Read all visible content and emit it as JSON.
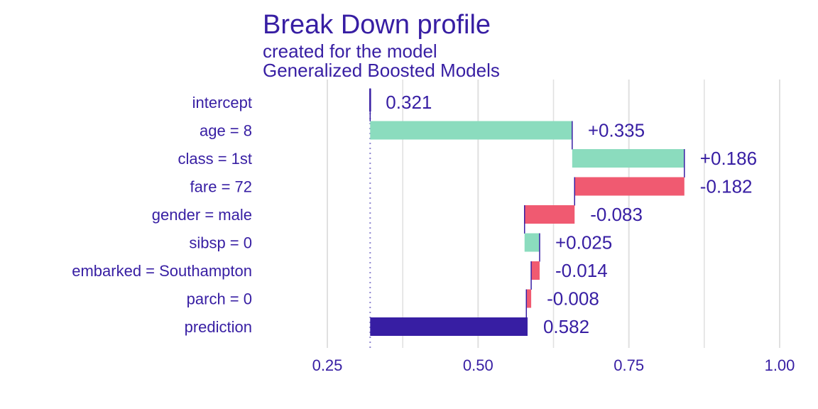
{
  "chart_data": {
    "type": "bar",
    "title": "Break Down profile",
    "subtitle_lines": [
      "created for the  model",
      "Generalized Boosted Models"
    ],
    "xlabel": "",
    "ylabel": "",
    "xlim": [
      0.18,
      1.0
    ],
    "x_ticks": [
      0.25,
      0.5,
      0.75,
      1.0
    ],
    "x_tick_labels": [
      "0.25",
      "0.50",
      "0.75",
      "1.00"
    ],
    "grid": true,
    "baseline": 0.321,
    "categories": [
      "intercept",
      "age = 8",
      "class = 1st",
      "fare = 72",
      "gender = male",
      "sibsp = 0",
      "embarked = Southampton",
      "parch = 0",
      "prediction"
    ],
    "bars": [
      {
        "label": "intercept",
        "start": 0.321,
        "end": 0.321,
        "kind": "intercept",
        "value_label": "0.321"
      },
      {
        "label": "age = 8",
        "start": 0.321,
        "end": 0.656,
        "kind": "positive",
        "value_label": "+0.335"
      },
      {
        "label": "class = 1st",
        "start": 0.656,
        "end": 0.842,
        "kind": "positive",
        "value_label": "+0.186"
      },
      {
        "label": "fare = 72",
        "start": 0.842,
        "end": 0.66,
        "kind": "negative",
        "value_label": "-0.182"
      },
      {
        "label": "gender = male",
        "start": 0.66,
        "end": 0.577,
        "kind": "negative",
        "value_label": "-0.083"
      },
      {
        "label": "sibsp = 0",
        "start": 0.577,
        "end": 0.602,
        "kind": "positive",
        "value_label": "+0.025"
      },
      {
        "label": "embarked = Southampton",
        "start": 0.602,
        "end": 0.588,
        "kind": "negative",
        "value_label": "-0.014"
      },
      {
        "label": "parch = 0",
        "start": 0.588,
        "end": 0.58,
        "kind": "negative",
        "value_label": "-0.008"
      },
      {
        "label": "prediction",
        "start": 0.321,
        "end": 0.582,
        "kind": "prediction",
        "value_label": "0.582"
      }
    ],
    "colors": {
      "positive": "#8bdcbe",
      "negative": "#f05a71",
      "prediction": "#371ea3",
      "text": "#371ea3",
      "grid": "#e0e0e0",
      "connector": "#371ea3",
      "baseline_line": "#8d84d0"
    }
  }
}
